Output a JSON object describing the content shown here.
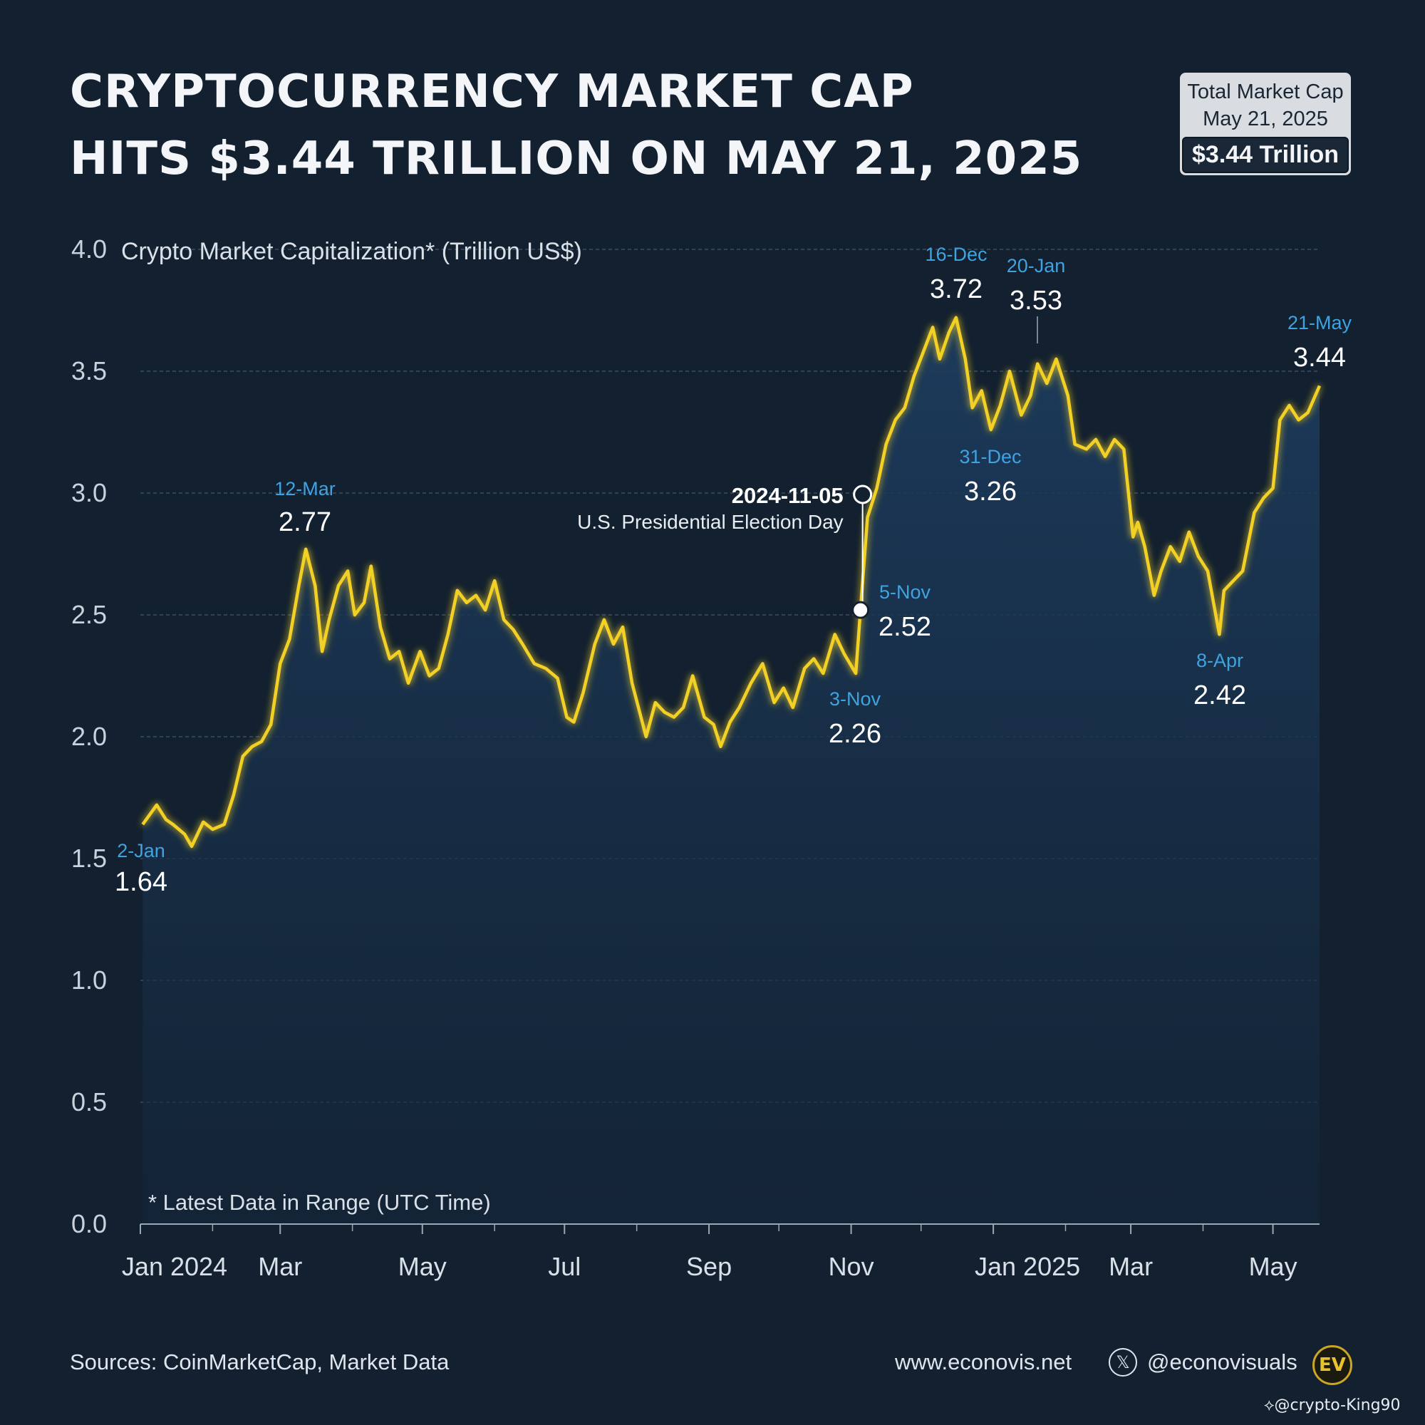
{
  "header": {
    "title_line1": "CRYPTOCURRENCY MARKET CAP",
    "title_line2": "HITS $3.44 TRILLION ON MAY 21, 2025"
  },
  "total_box": {
    "label_line1": "Total Market Cap",
    "label_line2": "May 21, 2025",
    "value": "$3.44 Trillion"
  },
  "footer": {
    "sources": "Sources: CoinMarketCap, Market Data",
    "website": "www.econovis.net",
    "handle": "@econovisuals",
    "logo_text": "EV",
    "x_icon": "x-logo-icon"
  },
  "watermark": "⟡@crypto-King90",
  "colors": {
    "background": "#12202f",
    "line": "#f2d027",
    "area_top": "#1d3c5e",
    "annotation_date": "#3ea3e0",
    "annotation_value": "#ffffff",
    "grid": "#3a4d62"
  },
  "chart_data": {
    "type": "area",
    "ylabel": "Crypto Market Capitalization* (Trillion US$)",
    "note": "* Latest Data in Range (UTC Time)",
    "ylim": [
      0,
      4.0
    ],
    "y_ticks": [
      "0.0",
      "0.5",
      "1.0",
      "1.5",
      "2.0",
      "2.5",
      "3.0",
      "3.5",
      "4.0"
    ],
    "x_range": [
      "2024-01-02",
      "2025-05-21"
    ],
    "x_tick_labels": [
      {
        "date": "2024-01-01",
        "label": "Jan 2024"
      },
      {
        "date": "2024-03-01",
        "label": "Mar"
      },
      {
        "date": "2024-05-01",
        "label": "May"
      },
      {
        "date": "2024-07-01",
        "label": "Jul"
      },
      {
        "date": "2024-09-01",
        "label": "Sep"
      },
      {
        "date": "2024-11-01",
        "label": "Nov"
      },
      {
        "date": "2025-01-01",
        "label": "Jan 2025"
      },
      {
        "date": "2025-03-01",
        "label": "Mar"
      },
      {
        "date": "2025-05-01",
        "label": "May"
      }
    ],
    "x_minor_ticks": [
      "2024-02-01",
      "2024-04-01",
      "2024-06-01",
      "2024-08-01",
      "2024-10-01",
      "2024-12-01",
      "2025-02-01",
      "2025-04-01"
    ],
    "grid": true,
    "series": [
      {
        "x": [
          "2024-01-02",
          "2024-01-08",
          "2024-01-12",
          "2024-01-15",
          "2024-01-20",
          "2024-01-23",
          "2024-01-28",
          "2024-02-01",
          "2024-02-06",
          "2024-02-10",
          "2024-02-14",
          "2024-02-18",
          "2024-02-22",
          "2024-02-26",
          "2024-03-01",
          "2024-03-05",
          "2024-03-09",
          "2024-03-12",
          "2024-03-16",
          "2024-03-19",
          "2024-03-22",
          "2024-03-26",
          "2024-03-30",
          "2024-04-02",
          "2024-04-06",
          "2024-04-09",
          "2024-04-13",
          "2024-04-17",
          "2024-04-21",
          "2024-04-25",
          "2024-04-30",
          "2024-05-04",
          "2024-05-08",
          "2024-05-12",
          "2024-05-16",
          "2024-05-20",
          "2024-05-24",
          "2024-05-28",
          "2024-06-01",
          "2024-06-05",
          "2024-06-09",
          "2024-06-13",
          "2024-06-18",
          "2024-06-23",
          "2024-06-28",
          "2024-07-02",
          "2024-07-05",
          "2024-07-09",
          "2024-07-14",
          "2024-07-18",
          "2024-07-22",
          "2024-07-26",
          "2024-07-30",
          "2024-08-05",
          "2024-08-09",
          "2024-08-13",
          "2024-08-17",
          "2024-08-21",
          "2024-08-25",
          "2024-08-30",
          "2024-09-03",
          "2024-09-06",
          "2024-09-10",
          "2024-09-14",
          "2024-09-19",
          "2024-09-24",
          "2024-09-29",
          "2024-10-03",
          "2024-10-07",
          "2024-10-12",
          "2024-10-16",
          "2024-10-20",
          "2024-10-25",
          "2024-10-29",
          "2024-11-03",
          "2024-11-05",
          "2024-11-08",
          "2024-11-12",
          "2024-11-16",
          "2024-11-20",
          "2024-11-24",
          "2024-11-28",
          "2024-12-02",
          "2024-12-06",
          "2024-12-09",
          "2024-12-13",
          "2024-12-16",
          "2024-12-20",
          "2024-12-23",
          "2024-12-27",
          "2024-12-31",
          "2025-01-04",
          "2025-01-08",
          "2025-01-13",
          "2025-01-17",
          "2025-01-20",
          "2025-01-24",
          "2025-01-28",
          "2025-02-02",
          "2025-02-05",
          "2025-02-10",
          "2025-02-14",
          "2025-02-18",
          "2025-02-22",
          "2025-02-26",
          "2025-03-02",
          "2025-03-04",
          "2025-03-07",
          "2025-03-11",
          "2025-03-14",
          "2025-03-18",
          "2025-03-22",
          "2025-03-26",
          "2025-03-30",
          "2025-04-03",
          "2025-04-08",
          "2025-04-10",
          "2025-04-14",
          "2025-04-18",
          "2025-04-23",
          "2025-04-27",
          "2025-05-01",
          "2025-05-04",
          "2025-05-08",
          "2025-05-12",
          "2025-05-16",
          "2025-05-21"
        ],
        "y": [
          1.64,
          1.72,
          1.66,
          1.64,
          1.6,
          1.55,
          1.65,
          1.62,
          1.64,
          1.76,
          1.92,
          1.96,
          1.98,
          2.05,
          2.3,
          2.4,
          2.62,
          2.77,
          2.62,
          2.35,
          2.48,
          2.62,
          2.68,
          2.5,
          2.55,
          2.7,
          2.45,
          2.32,
          2.35,
          2.22,
          2.35,
          2.25,
          2.28,
          2.42,
          2.6,
          2.55,
          2.58,
          2.52,
          2.64,
          2.48,
          2.44,
          2.38,
          2.3,
          2.28,
          2.24,
          2.08,
          2.06,
          2.18,
          2.38,
          2.48,
          2.38,
          2.45,
          2.22,
          2.0,
          2.14,
          2.1,
          2.08,
          2.12,
          2.25,
          2.08,
          2.05,
          1.96,
          2.06,
          2.12,
          2.22,
          2.3,
          2.14,
          2.2,
          2.12,
          2.28,
          2.32,
          2.26,
          2.42,
          2.34,
          2.26,
          2.52,
          2.9,
          3.02,
          3.2,
          3.3,
          3.35,
          3.48,
          3.58,
          3.68,
          3.55,
          3.66,
          3.72,
          3.55,
          3.35,
          3.42,
          3.26,
          3.36,
          3.5,
          3.32,
          3.4,
          3.53,
          3.45,
          3.55,
          3.4,
          3.2,
          3.18,
          3.22,
          3.15,
          3.22,
          3.18,
          2.82,
          2.88,
          2.78,
          2.58,
          2.68,
          2.78,
          2.72,
          2.84,
          2.74,
          2.68,
          2.42,
          2.6,
          2.64,
          2.68,
          2.92,
          2.98,
          3.02,
          3.3,
          3.36,
          3.3,
          3.33,
          3.44
        ]
      }
    ],
    "annotations": [
      {
        "date_label": "2-Jan",
        "value": "1.64"
      },
      {
        "date_label": "12-Mar",
        "value": "2.77"
      },
      {
        "date_label": "3-Nov",
        "value": "2.26"
      },
      {
        "date_label": "5-Nov",
        "value": "2.52"
      },
      {
        "date_label": "16-Dec",
        "value": "3.72"
      },
      {
        "date_label": "20-Jan",
        "value": "3.53"
      },
      {
        "date_label": "31-Dec",
        "value": "3.26"
      },
      {
        "date_label": "8-Apr",
        "value": "2.42"
      },
      {
        "date_label": "21-May",
        "value": "3.44"
      }
    ],
    "event": {
      "date": "2024-11-05",
      "label": "U.S. Presidential Election Day"
    }
  }
}
